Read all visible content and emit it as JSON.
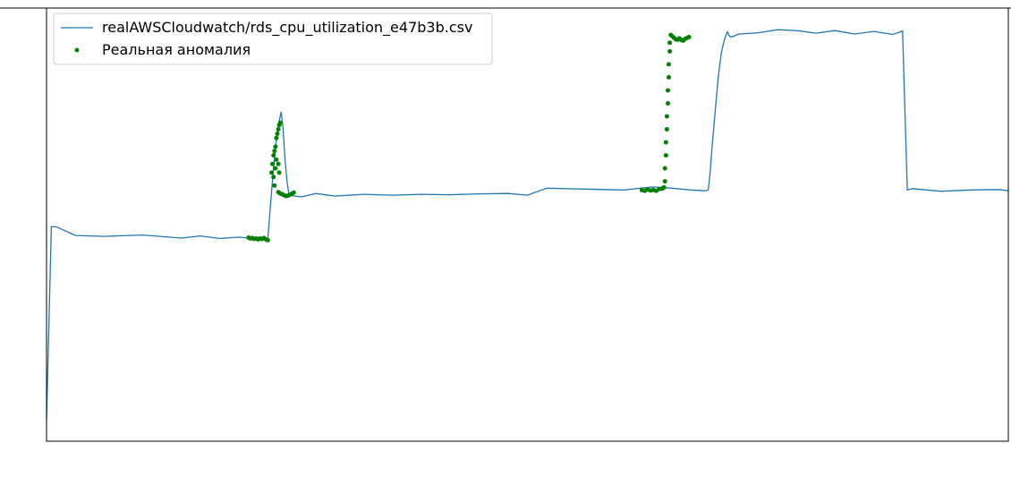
{
  "chart_data": {
    "type": "line",
    "title": "",
    "xlabel": "",
    "ylabel": "",
    "ylim": [
      0,
      100
    ],
    "x_range": [
      0,
      1000
    ],
    "grid": false,
    "legend_position": "upper-left",
    "colors": {
      "series": "#1f77b4",
      "anomaly": "#008000",
      "axis": "#000000"
    },
    "series": [
      {
        "name": "realAWSCloudwatch/rds_cpu_utilization_e47b3b.csv",
        "kind": "line",
        "segments": [
          {
            "x": [
              0,
              5,
              10,
              30,
              60,
              100,
              140,
              160,
              180,
              200,
              215,
              225,
              230
            ],
            "y": [
              5,
              49.5,
              49.5,
              47.5,
              47.3,
              47.6,
              46.9,
              47.4,
              46.8,
              47.1,
              46.8,
              47.0,
              46.6
            ]
          },
          {
            "x": [
              233,
              236,
              238,
              240,
              242,
              244,
              246,
              248,
              250,
              252
            ],
            "y": [
              55,
              63,
              68,
              71,
              74,
              76,
              72,
              65,
              60,
              57
            ]
          },
          {
            "x": [
              255,
              265,
              280,
              300,
              330,
              360,
              390,
              420,
              450,
              480,
              500,
              520,
              560,
              600,
              630,
              650,
              670,
              685
            ],
            "y": [
              56.7,
              56.4,
              57.2,
              56.6,
              57.0,
              56.8,
              57.0,
              56.9,
              57.1,
              57.2,
              56.8,
              58.4,
              58.2,
              58.0,
              58.7,
              58.4,
              58.0,
              57.8
            ]
          },
          {
            "x": [
              688,
              690,
              692,
              694,
              696,
              698,
              700,
              702,
              704,
              706,
              708,
              710
            ],
            "y": [
              58,
              62,
              68,
              73,
              78,
              83,
              87,
              90,
              92,
              93.5,
              94.5,
              93.5
            ]
          },
          {
            "x": [
              712,
              720,
              740,
              760,
              780,
              800,
              820,
              840,
              860,
              880,
              890,
              895,
              900,
              910,
              930,
              960,
              990,
              1000
            ],
            "y": [
              93.3,
              94.0,
              94.3,
              95.0,
              94.8,
              94.2,
              94.8,
              94.0,
              94.6,
              93.9,
              94.7,
              58.0,
              58.3,
              58.1,
              57.7,
              58.0,
              58.1,
              57.8
            ]
          }
        ]
      },
      {
        "name": "Реальная аномалия",
        "kind": "scatter",
        "points": [
          [
            210,
            47.0
          ],
          [
            212,
            46.8
          ],
          [
            214,
            46.9
          ],
          [
            216,
            46.7
          ],
          [
            218,
            46.8
          ],
          [
            220,
            46.6
          ],
          [
            222,
            46.8
          ],
          [
            224,
            46.7
          ],
          [
            226,
            46.9
          ],
          [
            228,
            46.6
          ],
          [
            230,
            46.4
          ],
          [
            234,
            62
          ],
          [
            235,
            64
          ],
          [
            236,
            66
          ],
          [
            237,
            67
          ],
          [
            238,
            68
          ],
          [
            239,
            70
          ],
          [
            240,
            71
          ],
          [
            241,
            72
          ],
          [
            242,
            73
          ],
          [
            243,
            73.5
          ],
          [
            236,
            61
          ],
          [
            237,
            59
          ],
          [
            238,
            63
          ],
          [
            239,
            65
          ],
          [
            241,
            64
          ],
          [
            242,
            62
          ],
          [
            241,
            57.5
          ],
          [
            243,
            57.2
          ],
          [
            245,
            57.0
          ],
          [
            247,
            56.8
          ],
          [
            249,
            56.6
          ],
          [
            251,
            56.7
          ],
          [
            253,
            56.9
          ],
          [
            255,
            57.1
          ],
          [
            257,
            57.4
          ],
          [
            619,
            58.0
          ],
          [
            622,
            57.8
          ],
          [
            625,
            58.1
          ],
          [
            628,
            57.9
          ],
          [
            631,
            58.0
          ],
          [
            634,
            57.8
          ],
          [
            637,
            58.2
          ],
          [
            640,
            58.3
          ],
          [
            642,
            58.6
          ],
          [
            643,
            60
          ],
          [
            643,
            63
          ],
          [
            644,
            66
          ],
          [
            644,
            69
          ],
          [
            645,
            72
          ],
          [
            645,
            75
          ],
          [
            646,
            78
          ],
          [
            646,
            81
          ],
          [
            647,
            84
          ],
          [
            647,
            87
          ],
          [
            648,
            90
          ],
          [
            648,
            92
          ],
          [
            649,
            93.8
          ],
          [
            650,
            93.6
          ],
          [
            652,
            93.2
          ],
          [
            654,
            92.8
          ],
          [
            656,
            92.7
          ],
          [
            658,
            93.0
          ],
          [
            660,
            92.6
          ],
          [
            662,
            92.5
          ],
          [
            664,
            92.9
          ],
          [
            666,
            93.1
          ],
          [
            668,
            93.3
          ]
        ]
      }
    ]
  }
}
